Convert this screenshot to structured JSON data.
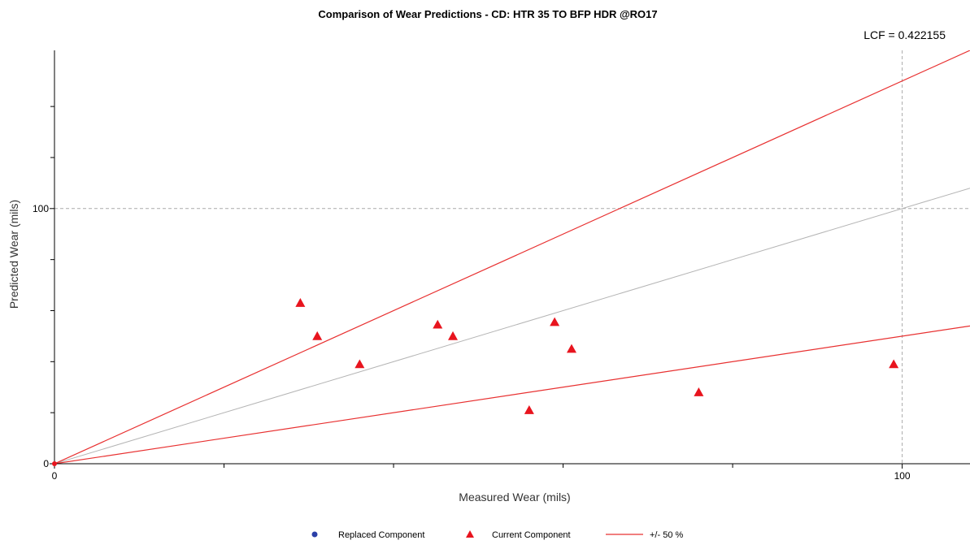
{
  "chart_data": {
    "type": "scatter",
    "title": "Comparison of Wear Predictions - CD: HTR 35 TO BFP HDR @RO17",
    "annotation": "LCF = 0.422155",
    "xlabel": "Measured Wear (mils)",
    "ylabel": "Predicted Wear (mils)",
    "xlim": [
      0,
      108
    ],
    "ylim": [
      0,
      162
    ],
    "x_tick_labels": [
      {
        "value": 0,
        "label": "0"
      },
      {
        "value": 100,
        "label": "100"
      }
    ],
    "y_tick_labels": [
      {
        "value": 0,
        "label": "0"
      },
      {
        "value": 100,
        "label": "100"
      }
    ],
    "x_minor_ticks": [
      20,
      40,
      60,
      80
    ],
    "y_minor_ticks": [
      20,
      40,
      60,
      80,
      120,
      140
    ],
    "grid": {
      "x": [
        100
      ],
      "y": [
        100
      ]
    },
    "reference_lines": [
      {
        "name": "equality",
        "slope": 1.0,
        "color": "#b4b4b4"
      },
      {
        "name": "+50%",
        "slope": 1.5,
        "color": "#e83030"
      },
      {
        "name": "-50%",
        "slope": 0.5,
        "color": "#e83030"
      }
    ],
    "series": [
      {
        "name": "Replaced Component",
        "marker": "circle",
        "color": "#2b3fa8",
        "points": []
      },
      {
        "name": "Current Component",
        "marker": "triangle",
        "color": "#e8141e",
        "points": [
          {
            "x": 29,
            "y": 63
          },
          {
            "x": 31,
            "y": 50
          },
          {
            "x": 36,
            "y": 39
          },
          {
            "x": 45.2,
            "y": 54.5
          },
          {
            "x": 47,
            "y": 50
          },
          {
            "x": 56,
            "y": 21
          },
          {
            "x": 59,
            "y": 55.5
          },
          {
            "x": 61,
            "y": 45
          },
          {
            "x": 76,
            "y": 28
          },
          {
            "x": 99,
            "y": 39
          }
        ]
      }
    ],
    "legend": {
      "position": "bottom",
      "entries": [
        {
          "label": "Replaced Component",
          "symbol": "circle",
          "color": "#2b3fa8"
        },
        {
          "label": "Current Component",
          "symbol": "triangle",
          "color": "#e8141e"
        },
        {
          "label": "+/- 50 %",
          "symbol": "line",
          "color": "#e83030"
        }
      ]
    }
  }
}
